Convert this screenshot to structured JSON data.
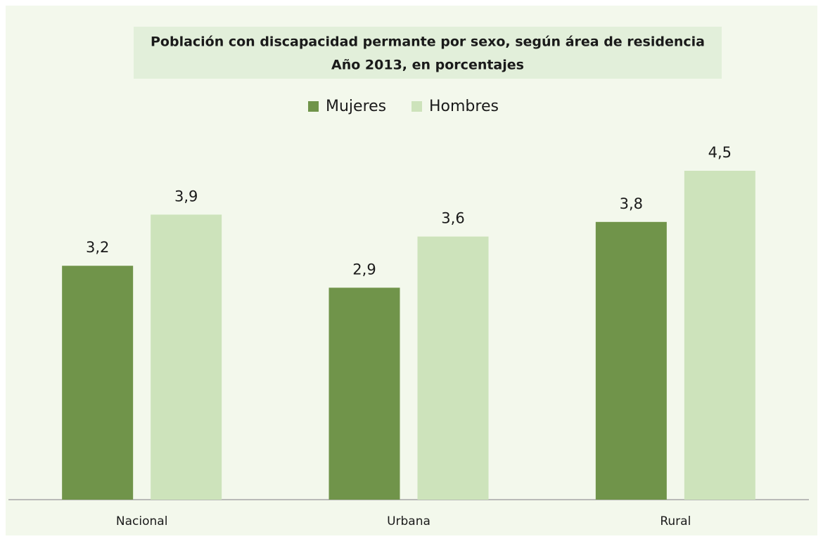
{
  "chart_data": {
    "type": "bar",
    "title": "Población con discapacidad permante por sexo, según área de residencia",
    "subtitle": "Año 2013, en porcentajes",
    "categories": [
      "Nacional",
      "Urbana",
      "Rural"
    ],
    "series": [
      {
        "name": "Mujeres",
        "color": "#70944a",
        "values": [
          3.2,
          2.9,
          3.8
        ],
        "value_labels": [
          "3,2",
          "2,9",
          "3,8"
        ]
      },
      {
        "name": "Hombres",
        "color": "#cde3bb",
        "values": [
          3.9,
          3.6,
          4.5
        ],
        "value_labels": [
          "3,9",
          "3,6",
          "4,5"
        ]
      }
    ],
    "ylim": [
      0,
      5
    ],
    "legend": "top"
  }
}
